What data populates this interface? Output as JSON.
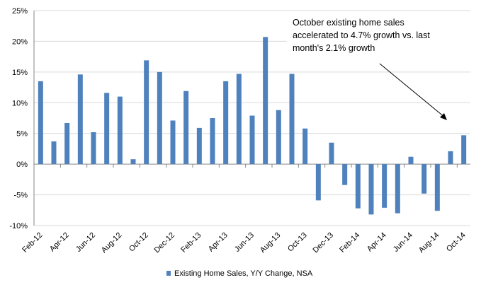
{
  "chart_data": {
    "type": "bar",
    "title": "",
    "xlabel": "",
    "ylabel": "",
    "ylim": [
      -10,
      25
    ],
    "yticks": [
      -10,
      -5,
      0,
      5,
      10,
      15,
      20,
      25
    ],
    "ytick_labels": [
      "-10%",
      "-5%",
      "0%",
      "5%",
      "10%",
      "15%",
      "20%",
      "25%"
    ],
    "grid": "horizontal",
    "bar_color": "#4F81BD",
    "categories": [
      "Feb-12",
      "Mar-12",
      "Apr-12",
      "May-12",
      "Jun-12",
      "Jul-12",
      "Aug-12",
      "Sep-12",
      "Oct-12",
      "Nov-12",
      "Dec-12",
      "Jan-13",
      "Feb-13",
      "Mar-13",
      "Apr-13",
      "May-13",
      "Jun-13",
      "Jul-13",
      "Aug-13",
      "Sep-13",
      "Oct-13",
      "Nov-13",
      "Dec-13",
      "Jan-14",
      "Feb-14",
      "Mar-14",
      "Apr-14",
      "May-14",
      "Jun-14",
      "Jul-14",
      "Aug-14",
      "Sep-14",
      "Oct-14"
    ],
    "x_tick_labels": [
      "Feb-12",
      "Apr-12",
      "Jun-12",
      "Aug-12",
      "Oct-12",
      "Dec-12",
      "Feb-13",
      "Apr-13",
      "Jun-13",
      "Aug-13",
      "Oct-13",
      "Dec-13",
      "Feb-14",
      "Apr-14",
      "Jun-14",
      "Aug-14",
      "Oct-14"
    ],
    "series": [
      {
        "name": "Existing Home Sales, Y/Y Change, NSA",
        "values": [
          13.5,
          3.7,
          6.7,
          14.6,
          5.2,
          11.6,
          11.0,
          0.8,
          16.9,
          15.0,
          7.1,
          11.9,
          5.9,
          7.5,
          13.5,
          14.7,
          7.9,
          20.7,
          8.8,
          14.7,
          5.8,
          -5.9,
          3.5,
          -3.4,
          -7.2,
          -8.2,
          -7.1,
          -8.0,
          1.2,
          -4.8,
          -7.6,
          2.1,
          4.7
        ]
      }
    ],
    "legend": {
      "position": "bottom",
      "label": "Existing Home Sales, Y/Y Change, NSA"
    },
    "annotation": {
      "lines": [
        "October existing home sales",
        "accelerated to 4.7% growth  vs. last",
        "month's 2.1% growth"
      ],
      "points_to": "Oct-14"
    }
  }
}
